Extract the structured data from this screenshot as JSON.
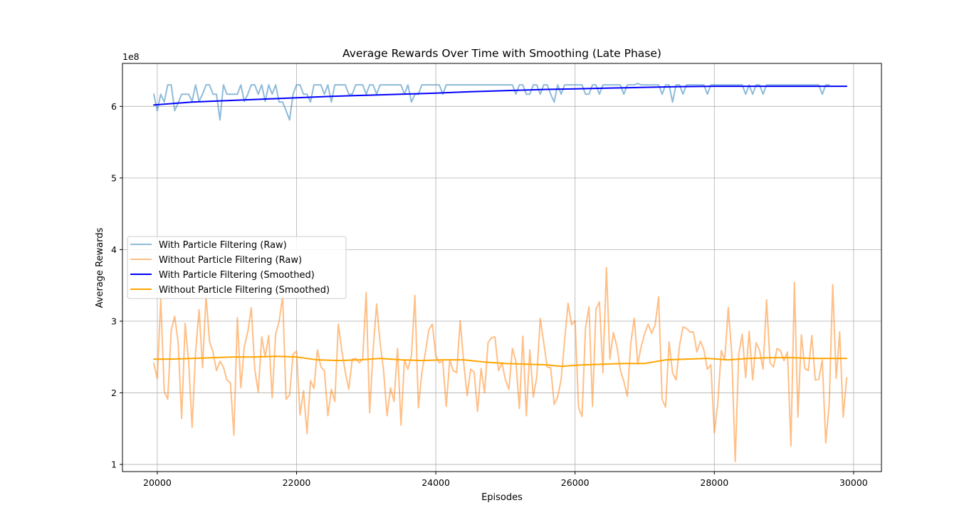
{
  "chart_data": {
    "type": "line",
    "title": "Average Rewards Over Time with Smoothing (Late Phase)",
    "xlabel": "Episodes",
    "ylabel": "Average Rewards",
    "y_scale_label": "1e8",
    "y_scale": 100000000,
    "xlim": [
      19500,
      30400
    ],
    "ylim": [
      90000000,
      660000000
    ],
    "x_ticks": [
      20000,
      22000,
      24000,
      26000,
      28000,
      30000
    ],
    "x_tick_labels": [
      "20000",
      "22000",
      "24000",
      "26000",
      "28000",
      "30000"
    ],
    "y_ticks": [
      100000000,
      200000000,
      300000000,
      400000000,
      500000000,
      600000000
    ],
    "y_tick_labels": [
      "1",
      "2",
      "3",
      "4",
      "5",
      "6"
    ],
    "grid": true,
    "legend_position": "center-left",
    "x_start": 19950,
    "x_step": 50,
    "series": [
      {
        "name": "With Particle Filtering (Raw)",
        "color": "#1f77b4",
        "opacity": 0.5,
        "stroke_width": 2,
        "values": [
          617,
          594,
          617,
          606,
          630,
          630,
          594,
          605,
          617,
          617,
          617,
          607,
          630,
          607,
          617,
          630,
          630,
          617,
          617,
          581,
          630,
          617,
          617,
          617,
          617,
          630,
          607,
          617,
          630,
          630,
          617,
          630,
          607,
          630,
          617,
          630,
          606,
          606,
          594,
          581,
          617,
          630,
          630,
          617,
          617,
          606,
          630,
          630,
          630,
          617,
          630,
          606,
          630,
          630,
          630,
          630,
          617,
          617,
          630,
          630,
          630,
          617,
          630,
          630,
          617,
          630,
          630,
          630,
          630,
          630,
          630,
          630,
          617,
          630,
          606,
          617,
          617,
          630,
          630,
          630,
          630,
          630,
          630,
          617,
          630,
          630,
          630,
          630,
          630,
          630,
          630,
          630,
          630,
          630,
          630,
          630,
          630,
          630,
          630,
          630,
          630,
          630,
          630,
          630,
          617,
          630,
          630,
          617,
          617,
          630,
          630,
          617,
          630,
          630,
          617,
          606,
          630,
          617,
          630,
          630,
          630,
          630,
          630,
          630,
          617,
          617,
          630,
          630,
          617,
          630,
          630,
          630,
          630,
          630,
          630,
          617,
          630,
          630,
          630,
          632,
          630,
          630,
          630,
          630,
          630,
          630,
          617,
          630,
          630,
          606,
          630,
          630,
          617,
          630,
          630,
          630,
          630,
          630,
          630,
          617,
          630,
          630,
          630,
          630,
          630,
          630,
          630,
          630,
          630,
          630,
          617,
          630,
          617,
          630,
          630,
          617,
          630,
          630,
          630,
          630,
          630,
          630,
          630,
          630,
          630,
          630,
          630,
          630,
          630,
          630,
          630,
          630,
          617,
          630,
          630
        ]
      },
      {
        "name": "Without Particle Filtering (Raw)",
        "color": "#ff7f0e",
        "opacity": 0.5,
        "stroke_width": 2,
        "values": [
          241,
          220,
          331,
          202,
          191,
          287,
          307,
          270,
          164,
          297,
          244,
          152,
          257,
          316,
          235,
          335,
          272,
          257,
          231,
          244,
          236,
          218,
          214,
          141,
          305,
          207,
          265,
          285,
          319,
          233,
          201,
          278,
          250,
          280,
          193,
          282,
          300,
          335,
          191,
          197,
          254,
          258,
          169,
          203,
          143,
          217,
          206,
          260,
          236,
          231,
          168,
          205,
          188,
          296,
          259,
          229,
          205,
          247,
          248,
          242,
          247,
          340,
          172,
          260,
          324,
          270,
          231,
          168,
          207,
          188,
          262,
          155,
          246,
          233,
          252,
          336,
          179,
          229,
          256,
          288,
          296,
          252,
          242,
          244,
          181,
          246,
          231,
          228,
          301,
          243,
          196,
          233,
          229,
          174,
          234,
          200,
          270,
          277,
          278,
          231,
          242,
          218,
          205,
          262,
          244,
          178,
          279,
          168,
          260,
          194,
          222,
          304,
          270,
          236,
          235,
          184,
          194,
          219,
          274,
          325,
          295,
          301,
          179,
          167,
          291,
          320,
          181,
          317,
          327,
          228,
          375,
          247,
          284,
          265,
          232,
          216,
          195,
          269,
          304,
          240,
          265,
          283,
          296,
          283,
          295,
          334,
          191,
          180,
          271,
          228,
          218,
          266,
          292,
          290,
          285,
          285,
          257,
          272,
          260,
          233,
          239,
          144,
          186,
          259,
          246,
          319,
          255,
          104,
          253,
          282,
          221,
          286,
          218,
          270,
          259,
          233,
          330,
          242,
          236,
          262,
          259,
          245,
          257,
          126,
          354,
          166,
          281,
          234,
          231,
          280,
          218,
          219,
          246,
          130,
          185,
          351,
          220,
          285,
          166,
          221
        ]
      },
      {
        "name": "With Particle Filtering (Smoothed)",
        "color": "#0000ff",
        "opacity": 1,
        "stroke_width": 2,
        "values_anchor_x": [
          19950,
          20500,
          21000,
          21500,
          22000,
          22500,
          23000,
          23500,
          24000,
          24500,
          25000,
          25500,
          26000,
          26500,
          27000,
          27500,
          28000,
          28500,
          29000,
          29500,
          29900
        ],
        "values": [
          602,
          606,
          608,
          610,
          612,
          614,
          615.5,
          617,
          618.5,
          620.5,
          622,
          623.5,
          624.5,
          625.5,
          626.5,
          627.5,
          628,
          628,
          628,
          628,
          628
        ]
      },
      {
        "name": "Without Particle Filtering (Smoothed)",
        "color": "#ffa500",
        "opacity": 1,
        "stroke_width": 2,
        "values_anchor_x": [
          19950,
          20200,
          20500,
          20800,
          21100,
          21400,
          21700,
          22000,
          22300,
          22600,
          22900,
          23200,
          23500,
          23800,
          24100,
          24400,
          24700,
          25000,
          25300,
          25600,
          25800,
          26100,
          26400,
          26700,
          27000,
          27300,
          27600,
          27900,
          28200,
          28500,
          28800,
          29100,
          29400,
          29700,
          29900
        ],
        "values": [
          247,
          247,
          248,
          249,
          250,
          250,
          251,
          250,
          246,
          245,
          246,
          248,
          246,
          245,
          246,
          246,
          243,
          241,
          240,
          239,
          237,
          239,
          240,
          241,
          241,
          246,
          247,
          248,
          246,
          248,
          249,
          249,
          248,
          248,
          248
        ]
      }
    ]
  }
}
